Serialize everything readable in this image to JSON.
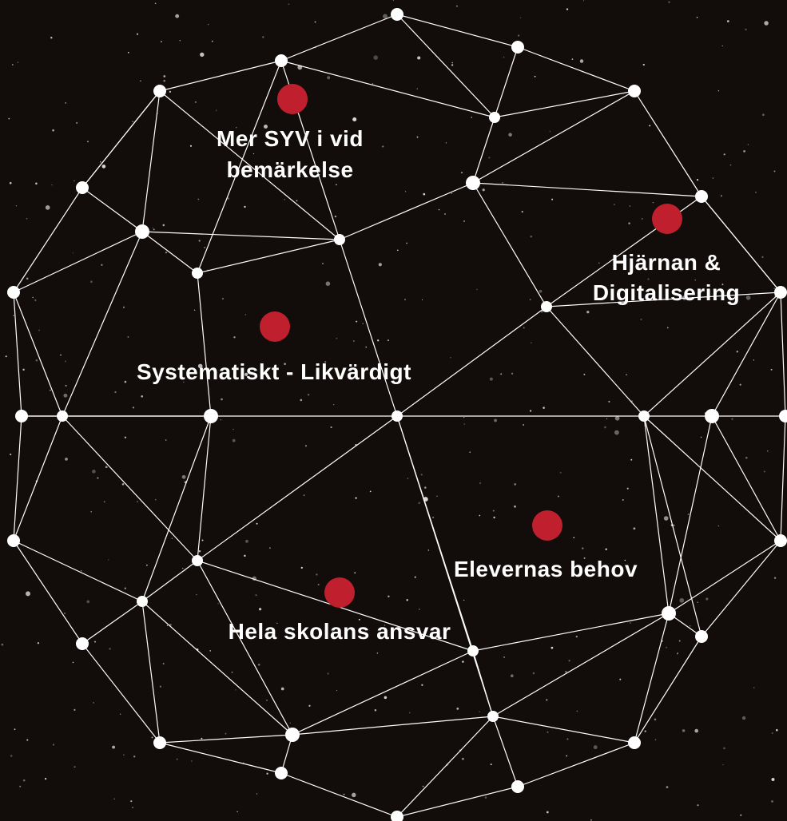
{
  "topics": [
    {
      "label": [
        "Mer SYV i vid",
        "bemärkelse"
      ]
    },
    {
      "label": [
        "Hjärnan &",
        "Digitalisering"
      ]
    },
    {
      "label": [
        "Systematiskt - Likvärdigt"
      ]
    },
    {
      "label": [
        "Elevernas behov"
      ]
    },
    {
      "label": [
        "Hela skolans ansvar"
      ]
    }
  ]
}
